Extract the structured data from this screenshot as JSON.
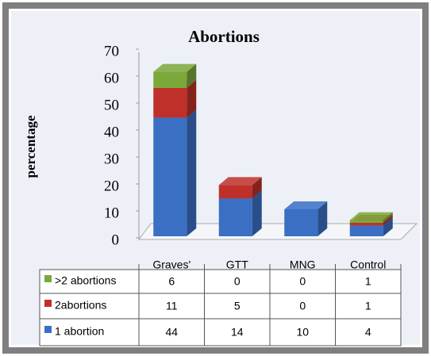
{
  "chart_data": {
    "type": "bar",
    "stacked": true,
    "title": "Abortions",
    "y_label": "percentage",
    "categories": [
      "Graves'",
      "GTT",
      "MNG",
      "Control"
    ],
    "series": [
      {
        "name": "1 abortion",
        "color": "#3a6fc4",
        "values": [
          44,
          14,
          10,
          4
        ]
      },
      {
        "name": "2abortions",
        "color": "#c0302b",
        "values": [
          11,
          5,
          0,
          1
        ]
      },
      {
        "name": ">2 abortions",
        "color": "#7ca83a",
        "values": [
          6,
          0,
          0,
          1
        ]
      }
    ],
    "ylim": [
      0,
      70
    ],
    "yticks": [
      0,
      10,
      20,
      30,
      40,
      50,
      60,
      70
    ],
    "data_table": true
  }
}
